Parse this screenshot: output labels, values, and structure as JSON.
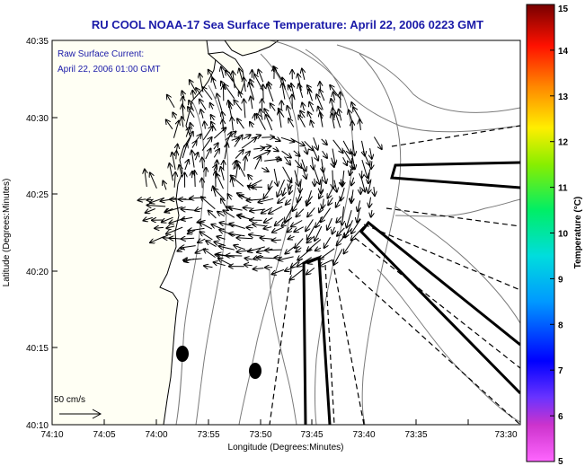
{
  "title": "RU COOL  NOAA-17  Sea Surface Temperature:  April 22, 2006 0223 GMT",
  "annotation": {
    "line1": "Raw Surface Current:",
    "line2": "April 22, 2006 01:00 GMT"
  },
  "axes": {
    "xlabel": "Longitude (Degrees:Minutes)",
    "ylabel": "Latitude (Degrees:Minutes)",
    "xticks": [
      "74:10",
      "74:05",
      "74:00",
      "73:55",
      "73:50",
      "73:45",
      "73:40",
      "73:35",
      "73:30"
    ],
    "yticks": [
      "40:35",
      "40:30",
      "40:25",
      "40:20",
      "40:15",
      "40:10"
    ]
  },
  "scale_arrow": {
    "label": "50 cm/s"
  },
  "colorbar": {
    "label": "Temperature (°C)",
    "ticks": [
      "15",
      "14",
      "13",
      "12",
      "11",
      "10",
      "9",
      "8",
      "7",
      "6",
      "5"
    ],
    "range": [
      5,
      15
    ]
  },
  "colors": {
    "title": "#1a1aa8",
    "annotation": "#1a1aa8",
    "land": "#fffff4",
    "water": "#ffffff",
    "contour": "#7a7a7a"
  }
}
